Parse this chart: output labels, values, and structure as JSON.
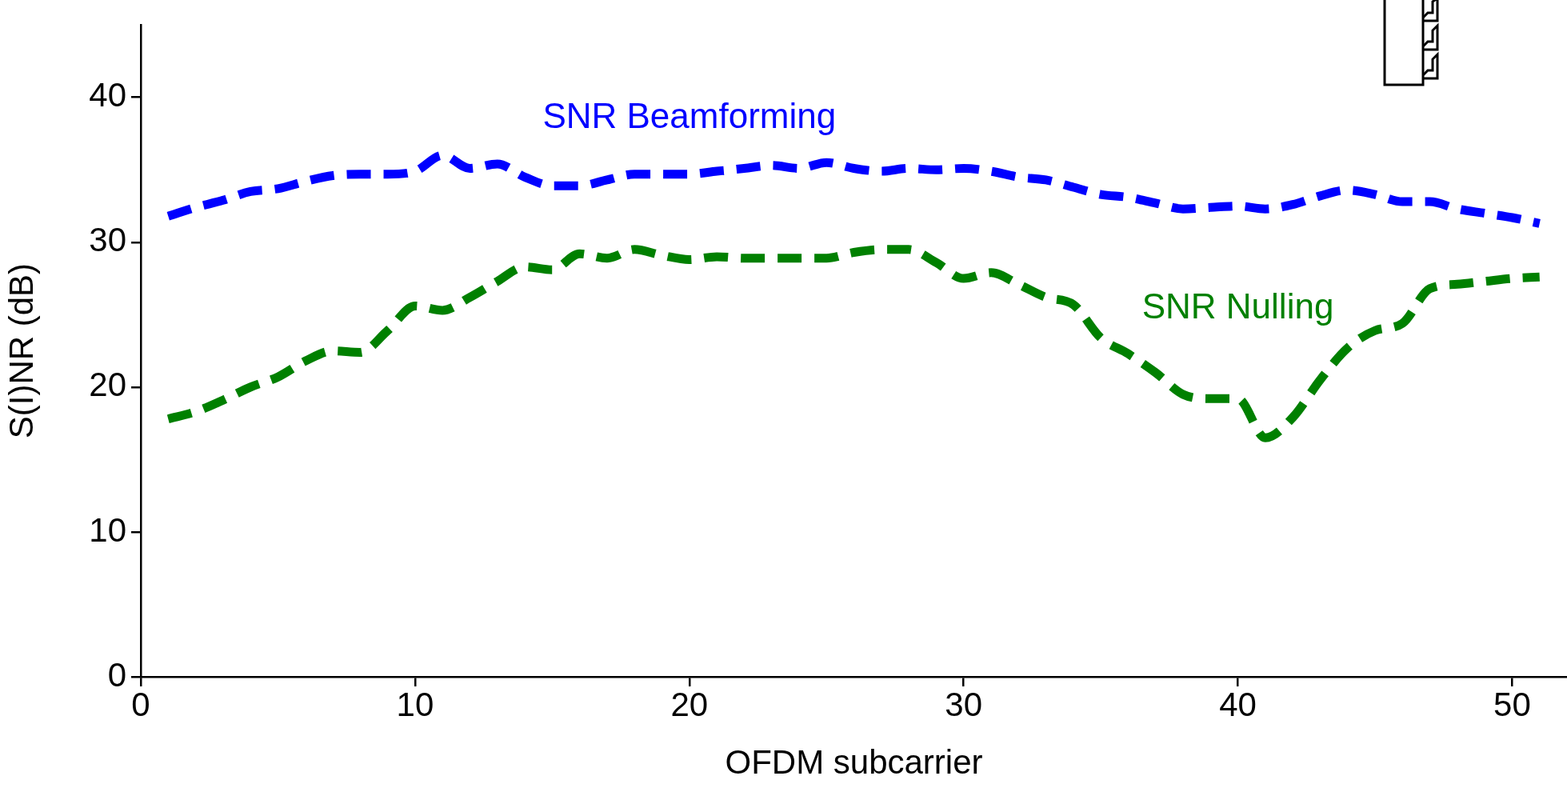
{
  "chart_data": {
    "type": "line",
    "xlabel": "OFDM subcarrier",
    "ylabel": "S(I)NR (dB)",
    "x": [
      1,
      2,
      3,
      4,
      5,
      6,
      7,
      8,
      9,
      10,
      11,
      12,
      13,
      14,
      15,
      16,
      17,
      18,
      19,
      20,
      21,
      22,
      23,
      24,
      25,
      26,
      27,
      28,
      29,
      30,
      31,
      32,
      33,
      34,
      35,
      36,
      37,
      38,
      39,
      40,
      41,
      42,
      43,
      44,
      45,
      46,
      47,
      48,
      49,
      50,
      51
    ],
    "series": [
      {
        "name": "SNR Beamforming",
        "color": "#0000ff",
        "line_style": "dashed",
        "values": [
          31.8,
          32.4,
          32.9,
          33.5,
          33.7,
          34.2,
          34.6,
          34.7,
          34.7,
          34.9,
          36.0,
          35.1,
          35.4,
          34.5,
          33.9,
          33.9,
          34.3,
          34.7,
          34.7,
          34.7,
          34.9,
          35.1,
          35.3,
          35.1,
          35.5,
          35.1,
          34.9,
          35.1,
          35.0,
          35.1,
          34.9,
          34.5,
          34.3,
          33.8,
          33.3,
          33.1,
          32.7,
          32.3,
          32.4,
          32.5,
          32.3,
          32.6,
          33.2,
          33.6,
          33.3,
          32.8,
          32.8,
          32.3,
          32.0,
          31.7,
          31.3
        ]
      },
      {
        "name": "SNR Nulling",
        "color": "#008000",
        "line_style": "dashed",
        "values": [
          17.8,
          18.3,
          19.1,
          20.0,
          20.7,
          21.8,
          22.5,
          22.4,
          23.9,
          25.6,
          25.3,
          26.2,
          27.3,
          28.3,
          28.1,
          29.2,
          28.9,
          29.5,
          29.1,
          28.8,
          29.0,
          28.9,
          28.9,
          28.9,
          28.9,
          29.3,
          29.5,
          29.5,
          28.6,
          27.5,
          27.9,
          27.1,
          26.2,
          25.7,
          23.4,
          22.3,
          21.0,
          19.5,
          19.2,
          19.2,
          16.5,
          17.9,
          20.5,
          22.7,
          23.9,
          24.4,
          26.8,
          27.1,
          27.3,
          27.5,
          27.6
        ]
      }
    ],
    "xlim": [
      0,
      52
    ],
    "xticks": [
      0,
      10,
      20,
      30,
      40,
      50
    ],
    "ylim": [
      0,
      45
    ],
    "yticks": [
      0,
      10,
      20,
      30,
      40
    ],
    "grid": false,
    "legend": false,
    "marker": "none"
  }
}
